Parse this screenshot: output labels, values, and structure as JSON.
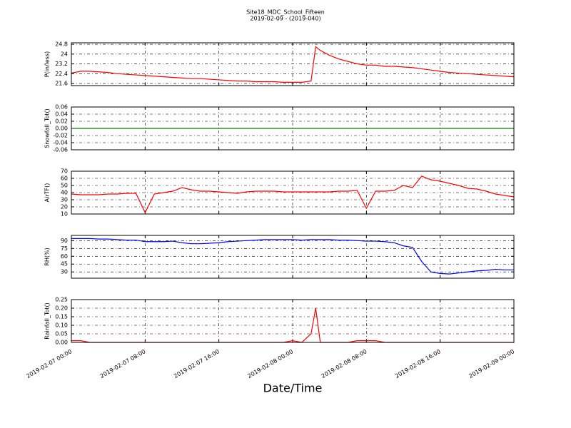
{
  "chart_data": [
    {
      "type": "line",
      "title": "Site18_MDC_School_Fifteen",
      "subtitle": "2019-02-09 - (2019-040)",
      "ylabel": "P(in/less)",
      "x": [
        "2019-02-07 00:00",
        "2019-02-07 01:00",
        "2019-02-07 02:00",
        "2019-02-07 03:00",
        "2019-02-07 04:00",
        "2019-02-07 05:00",
        "2019-02-07 06:00",
        "2019-02-07 07:00",
        "2019-02-07 08:00",
        "2019-02-07 09:00",
        "2019-02-07 10:00",
        "2019-02-07 11:00",
        "2019-02-07 12:00",
        "2019-02-07 13:00",
        "2019-02-07 14:00",
        "2019-02-07 15:00",
        "2019-02-07 16:00",
        "2019-02-07 17:00",
        "2019-02-07 18:00",
        "2019-02-07 19:00",
        "2019-02-07 20:00",
        "2019-02-07 21:00",
        "2019-02-07 22:00",
        "2019-02-07 23:00",
        "2019-02-08 00:00",
        "2019-02-08 01:00",
        "2019-02-08 02:00",
        "2019-02-08 02:30",
        "2019-02-08 03:00",
        "2019-02-08 04:00",
        "2019-02-08 05:00",
        "2019-02-08 06:00",
        "2019-02-08 07:00",
        "2019-02-08 08:00",
        "2019-02-08 09:00",
        "2019-02-08 10:00",
        "2019-02-08 11:00",
        "2019-02-08 12:00",
        "2019-02-08 13:00",
        "2019-02-08 14:00",
        "2019-02-08 15:00",
        "2019-02-08 16:00",
        "2019-02-08 17:00",
        "2019-02-08 18:00",
        "2019-02-08 19:00",
        "2019-02-08 20:00",
        "2019-02-08 21:00",
        "2019-02-08 22:00",
        "2019-02-08 23:00",
        "2019-02-09 00:00"
      ],
      "series": [
        {
          "name": "P(in/less)",
          "color": "#ff0000",
          "values": [
            22.45,
            22.6,
            22.6,
            22.55,
            22.5,
            22.4,
            22.35,
            22.3,
            22.25,
            22.2,
            22.15,
            22.1,
            22.05,
            22.0,
            22.0,
            21.95,
            21.9,
            21.85,
            21.8,
            21.8,
            21.75,
            21.75,
            21.75,
            21.7,
            21.7,
            21.7,
            21.8,
            24.6,
            24.3,
            23.9,
            23.6,
            23.4,
            23.2,
            23.1,
            23.1,
            23.0,
            23.0,
            22.95,
            22.9,
            22.8,
            22.7,
            22.6,
            22.5,
            22.45,
            22.4,
            22.35,
            22.3,
            22.25,
            22.2,
            22.15
          ]
        }
      ],
      "ylim": [
        21.43,
        24.92
      ],
      "yticks": [
        21.6,
        22.4,
        23.2,
        24.0,
        24.8
      ],
      "xlim": [
        "2019-02-07 00:00",
        "2019-02-09 00:00"
      ],
      "xticks": [
        "2019-02-07 00:00",
        "2019-02-07 08:00",
        "2019-02-07 16:00",
        "2019-02-08 00:00",
        "2019-02-08 08:00",
        "2019-02-08 16:00",
        "2019-02-09 00:00"
      ],
      "grid": true
    },
    {
      "type": "line",
      "ylabel": "Snowfall_Tot()",
      "x": [
        "2019-02-07 00:00",
        "2019-02-07 01:00",
        "2019-02-07 02:00",
        "2019-02-07 03:00",
        "2019-02-07 04:00",
        "2019-02-07 05:00",
        "2019-02-07 06:00",
        "2019-02-07 07:00",
        "2019-02-07 08:00",
        "2019-02-07 09:00",
        "2019-02-07 10:00",
        "2019-02-07 11:00",
        "2019-02-07 12:00",
        "2019-02-07 13:00",
        "2019-02-07 14:00",
        "2019-02-07 15:00",
        "2019-02-07 16:00",
        "2019-02-07 17:00",
        "2019-02-07 18:00",
        "2019-02-07 19:00",
        "2019-02-07 20:00",
        "2019-02-07 21:00",
        "2019-02-07 22:00",
        "2019-02-07 23:00",
        "2019-02-08 00:00",
        "2019-02-08 01:00",
        "2019-02-08 02:00",
        "2019-02-08 02:30",
        "2019-02-08 03:00",
        "2019-02-08 04:00",
        "2019-02-08 05:00",
        "2019-02-08 06:00",
        "2019-02-08 07:00",
        "2019-02-08 08:00",
        "2019-02-08 09:00",
        "2019-02-08 10:00",
        "2019-02-08 11:00",
        "2019-02-08 12:00",
        "2019-02-08 13:00",
        "2019-02-08 14:00",
        "2019-02-08 15:00",
        "2019-02-08 16:00",
        "2019-02-08 17:00",
        "2019-02-08 18:00",
        "2019-02-08 19:00",
        "2019-02-08 20:00",
        "2019-02-08 21:00",
        "2019-02-08 22:00",
        "2019-02-08 23:00",
        "2019-02-09 00:00"
      ],
      "series": [
        {
          "name": "Snowfall_Tot()",
          "color": "#008000",
          "values": [
            0,
            0,
            0,
            0,
            0,
            0,
            0,
            0,
            0,
            0,
            0,
            0,
            0,
            0,
            0,
            0,
            0,
            0,
            0,
            0,
            0,
            0,
            0,
            0,
            0,
            0,
            0,
            0,
            0,
            0,
            0,
            0,
            0,
            0,
            0,
            0,
            0,
            0,
            0,
            0,
            0,
            0,
            0,
            0,
            0,
            0,
            0,
            0,
            0,
            0
          ]
        }
      ],
      "ylim": [
        -0.06,
        0.06
      ],
      "yticks": [
        -0.06,
        -0.04,
        -0.02,
        {
          "value": 0,
          "label": "0.00"
        },
        0.02,
        0.04,
        0.06
      ],
      "xlim": [
        "2019-02-07 00:00",
        "2019-02-09 00:00"
      ],
      "xticks": [
        "2019-02-07 00:00",
        "2019-02-07 08:00",
        "2019-02-07 16:00",
        "2019-02-08 00:00",
        "2019-02-08 08:00",
        "2019-02-08 16:00",
        "2019-02-09 00:00"
      ],
      "grid": true
    },
    {
      "type": "line",
      "ylabel": "AirTF()",
      "x": [
        "2019-02-07 00:00",
        "2019-02-07 01:00",
        "2019-02-07 02:00",
        "2019-02-07 03:00",
        "2019-02-07 04:00",
        "2019-02-07 05:00",
        "2019-02-07 06:00",
        "2019-02-07 07:00",
        "2019-02-07 08:00",
        "2019-02-07 09:00",
        "2019-02-07 10:00",
        "2019-02-07 11:00",
        "2019-02-07 12:00",
        "2019-02-07 13:00",
        "2019-02-07 14:00",
        "2019-02-07 15:00",
        "2019-02-07 16:00",
        "2019-02-07 17:00",
        "2019-02-07 18:00",
        "2019-02-07 19:00",
        "2019-02-07 20:00",
        "2019-02-07 21:00",
        "2019-02-07 22:00",
        "2019-02-07 23:00",
        "2019-02-08 00:00",
        "2019-02-08 01:00",
        "2019-02-08 02:00",
        "2019-02-08 02:30",
        "2019-02-08 03:00",
        "2019-02-08 04:00",
        "2019-02-08 05:00",
        "2019-02-08 06:00",
        "2019-02-08 07:00",
        "2019-02-08 08:00",
        "2019-02-08 09:00",
        "2019-02-08 10:00",
        "2019-02-08 11:00",
        "2019-02-08 12:00",
        "2019-02-08 13:00",
        "2019-02-08 14:00",
        "2019-02-08 15:00",
        "2019-02-08 16:00",
        "2019-02-08 17:00",
        "2019-02-08 18:00",
        "2019-02-08 19:00",
        "2019-02-08 20:00",
        "2019-02-08 21:00",
        "2019-02-08 22:00",
        "2019-02-08 23:00",
        "2019-02-09 00:00"
      ],
      "series": [
        {
          "name": "AirTF()",
          "color": "#ff0000",
          "values": [
            38,
            37,
            37,
            37,
            38,
            38,
            39,
            39,
            12,
            38,
            40,
            42,
            47,
            44,
            42,
            42,
            41,
            40,
            39,
            41,
            42,
            42,
            42,
            41,
            41,
            41,
            41,
            41,
            41,
            41,
            42,
            42,
            43,
            18,
            42,
            42,
            43,
            50,
            47,
            63,
            58,
            56,
            53,
            50,
            46,
            45,
            42,
            38,
            36,
            34
          ]
        }
      ],
      "ylim": [
        10,
        70
      ],
      "yticks": [
        10,
        20,
        30,
        40,
        50,
        60,
        70
      ],
      "xlim": [
        "2019-02-07 00:00",
        "2019-02-09 00:00"
      ],
      "xticks": [
        "2019-02-07 00:00",
        "2019-02-07 08:00",
        "2019-02-07 16:00",
        "2019-02-08 00:00",
        "2019-02-08 08:00",
        "2019-02-08 16:00",
        "2019-02-09 00:00"
      ],
      "grid": true
    },
    {
      "type": "line",
      "ylabel": "RH(%)",
      "x": [
        "2019-02-07 00:00",
        "2019-02-07 01:00",
        "2019-02-07 02:00",
        "2019-02-07 03:00",
        "2019-02-07 04:00",
        "2019-02-07 05:00",
        "2019-02-07 06:00",
        "2019-02-07 07:00",
        "2019-02-07 08:00",
        "2019-02-07 09:00",
        "2019-02-07 10:00",
        "2019-02-07 11:00",
        "2019-02-07 12:00",
        "2019-02-07 13:00",
        "2019-02-07 14:00",
        "2019-02-07 15:00",
        "2019-02-07 16:00",
        "2019-02-07 17:00",
        "2019-02-07 18:00",
        "2019-02-07 19:00",
        "2019-02-07 20:00",
        "2019-02-07 21:00",
        "2019-02-07 22:00",
        "2019-02-07 23:00",
        "2019-02-08 00:00",
        "2019-02-08 01:00",
        "2019-02-08 02:00",
        "2019-02-08 02:30",
        "2019-02-08 03:00",
        "2019-02-08 04:00",
        "2019-02-08 05:00",
        "2019-02-08 06:00",
        "2019-02-08 07:00",
        "2019-02-08 08:00",
        "2019-02-08 09:00",
        "2019-02-08 10:00",
        "2019-02-08 11:00",
        "2019-02-08 12:00",
        "2019-02-08 13:00",
        "2019-02-08 14:00",
        "2019-02-08 15:00",
        "2019-02-08 16:00",
        "2019-02-08 17:00",
        "2019-02-08 18:00",
        "2019-02-08 19:00",
        "2019-02-08 20:00",
        "2019-02-08 21:00",
        "2019-02-08 22:00",
        "2019-02-08 23:00",
        "2019-02-09 00:00"
      ],
      "series": [
        {
          "name": "RH(%)",
          "color": "#0000ff",
          "values": [
            94,
            94,
            94,
            93,
            93,
            92,
            91,
            91,
            88,
            88,
            88,
            89,
            86,
            84,
            84,
            85,
            86,
            88,
            89,
            90,
            91,
            92,
            92,
            92,
            92,
            91,
            92,
            92,
            92,
            92,
            91,
            91,
            90,
            89,
            89,
            88,
            86,
            80,
            77,
            50,
            30,
            27,
            26,
            28,
            30,
            32,
            33,
            35,
            34,
            34
          ]
        }
      ],
      "ylim": [
        18,
        100
      ],
      "yticks": [
        30,
        45,
        60,
        75,
        90
      ],
      "xlim": [
        "2019-02-07 00:00",
        "2019-02-09 00:00"
      ],
      "xticks": [
        "2019-02-07 00:00",
        "2019-02-07 08:00",
        "2019-02-07 16:00",
        "2019-02-08 00:00",
        "2019-02-08 08:00",
        "2019-02-08 16:00",
        "2019-02-09 00:00"
      ],
      "grid": true
    },
    {
      "type": "line",
      "ylabel": "Rainfall_Tot()",
      "xlabel": "Date/Time",
      "x": [
        "2019-02-07 00:00",
        "2019-02-07 01:00",
        "2019-02-07 02:00",
        "2019-02-07 03:00",
        "2019-02-07 04:00",
        "2019-02-07 05:00",
        "2019-02-07 06:00",
        "2019-02-07 07:00",
        "2019-02-07 08:00",
        "2019-02-07 09:00",
        "2019-02-07 10:00",
        "2019-02-07 11:00",
        "2019-02-07 12:00",
        "2019-02-07 13:00",
        "2019-02-07 14:00",
        "2019-02-07 15:00",
        "2019-02-07 16:00",
        "2019-02-07 17:00",
        "2019-02-07 18:00",
        "2019-02-07 19:00",
        "2019-02-07 20:00",
        "2019-02-07 21:00",
        "2019-02-07 22:00",
        "2019-02-07 23:00",
        "2019-02-08 00:00",
        "2019-02-08 01:00",
        "2019-02-08 02:00",
        "2019-02-08 02:30",
        "2019-02-08 03:00",
        "2019-02-08 04:00",
        "2019-02-08 05:00",
        "2019-02-08 06:00",
        "2019-02-08 07:00",
        "2019-02-08 08:00",
        "2019-02-08 09:00",
        "2019-02-08 10:00",
        "2019-02-08 11:00",
        "2019-02-08 12:00",
        "2019-02-08 13:00",
        "2019-02-08 14:00",
        "2019-02-08 15:00",
        "2019-02-08 16:00",
        "2019-02-08 17:00",
        "2019-02-08 18:00",
        "2019-02-08 19:00",
        "2019-02-08 20:00",
        "2019-02-08 21:00",
        "2019-02-08 22:00",
        "2019-02-08 23:00",
        "2019-02-09 00:00"
      ],
      "series": [
        {
          "name": "Rainfall_Tot()",
          "color": "#ff0000",
          "values": [
            0.01,
            0.01,
            0,
            0,
            0,
            0,
            0,
            0,
            0,
            0,
            0,
            0,
            0,
            0,
            0,
            0,
            0,
            0,
            0,
            0,
            0,
            0,
            0,
            0,
            0.01,
            0,
            0.05,
            0.2,
            0,
            0,
            0,
            0,
            0.01,
            0.01,
            0.01,
            0,
            0,
            0,
            0,
            0,
            0,
            0,
            0,
            0,
            0,
            0,
            0,
            0,
            0,
            0
          ]
        }
      ],
      "ylim": [
        0,
        0.25
      ],
      "yticks": [
        {
          "value": 0,
          "label": "0.00"
        },
        0.05,
        {
          "value": 0.1,
          "label": "0.10"
        },
        0.15,
        {
          "value": 0.2,
          "label": "0.20"
        },
        0.25
      ],
      "xlim": [
        "2019-02-07 00:00",
        "2019-02-09 00:00"
      ],
      "xticks": [
        "2019-02-07 00:00",
        "2019-02-07 08:00",
        "2019-02-07 16:00",
        "2019-02-08 00:00",
        "2019-02-08 08:00",
        "2019-02-08 16:00",
        "2019-02-09 00:00"
      ],
      "grid": true
    }
  ]
}
